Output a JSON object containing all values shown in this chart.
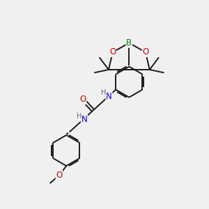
{
  "bg_color": "#f0f0f0",
  "bond_color": "#1a1a1a",
  "bond_width": 1.4,
  "atom_colors": {
    "O": "#cc0000",
    "B": "#008800",
    "N": "#0000cc",
    "H": "#666666",
    "C": "#1a1a1a"
  },
  "font_size": 8.5,
  "font_size_small": 7.0
}
